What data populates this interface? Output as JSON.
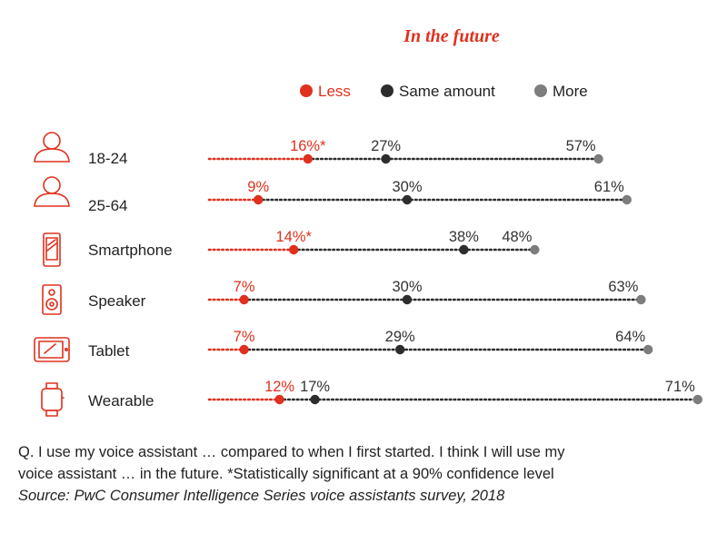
{
  "chart_data": {
    "type": "dot-plot",
    "title": "In the future",
    "legend": [
      {
        "name": "Less",
        "color": "#e0301e"
      },
      {
        "name": "Same amount",
        "color": "#2d2d2d"
      },
      {
        "name": "More",
        "color": "#7d7d7d"
      }
    ],
    "legend_placement": "top",
    "xlim": [
      0,
      100
    ],
    "series": [
      {
        "name": "Less",
        "values": [
          16,
          9,
          14,
          7,
          7,
          12
        ],
        "labels": [
          "16%*",
          "9%",
          "14%*",
          "7%",
          "7%",
          "12%"
        ]
      },
      {
        "name": "Same amount",
        "values": [
          27,
          30,
          38,
          30,
          29,
          17
        ],
        "labels": [
          "27%",
          "30%",
          "38%",
          "30%",
          "29%",
          "17%"
        ]
      },
      {
        "name": "More",
        "values": [
          57,
          61,
          48,
          63,
          64,
          71
        ],
        "labels": [
          "57%",
          "61%",
          "48%",
          "63%",
          "64%",
          "71%"
        ]
      }
    ],
    "categories": [
      {
        "label": "18-24",
        "icon": "person-icon"
      },
      {
        "label": "25-64",
        "icon": "person-icon"
      },
      {
        "label": "Smartphone",
        "icon": "smartphone-icon"
      },
      {
        "label": "Speaker",
        "icon": "speaker-icon"
      },
      {
        "label": "Tablet",
        "icon": "tablet-icon"
      },
      {
        "label": "Wearable",
        "icon": "smartwatch-icon"
      }
    ]
  },
  "notes": {
    "line1": "Q. I use my voice assistant … compared to when I first started. I think I will use my",
    "line2": "voice assistant … in the future. *Statistically significant at a 90% confidence level",
    "source": "Source: PwC Consumer Intelligence Series voice assistants survey, 2018"
  }
}
